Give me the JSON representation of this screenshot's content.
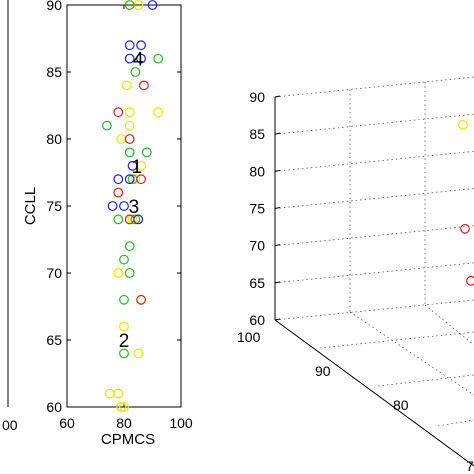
{
  "chart_data": [
    {
      "type": "axis-fragment",
      "x_tick_labels": [
        "00"
      ]
    },
    {
      "type": "scatter",
      "xlabel": "CPMCS",
      "ylabel": "CCLL",
      "xlim": [
        60,
        100
      ],
      "ylim": [
        60,
        90
      ],
      "x_ticks": [
        60,
        80,
        100
      ],
      "y_ticks": [
        60,
        65,
        70,
        75,
        80,
        85,
        90
      ],
      "grid": false,
      "annotations": [
        {
          "text": "4",
          "x": 85,
          "y": 86
        },
        {
          "text": "1",
          "x": 84.5,
          "y": 78
        },
        {
          "text": "3",
          "x": 83.5,
          "y": 75
        },
        {
          "text": "2",
          "x": 80,
          "y": 65
        }
      ],
      "series": [
        {
          "color": "#e6e600",
          "points": [
            [
              82,
              90
            ],
            [
              85,
              90
            ],
            [
              81,
              84
            ],
            [
              82,
              82
            ],
            [
              92,
              82
            ],
            [
              82,
              81
            ],
            [
              79,
              80
            ],
            [
              86,
              78
            ],
            [
              84,
              77
            ],
            [
              82,
              74
            ],
            [
              83,
              74
            ],
            [
              78,
              70
            ],
            [
              86,
              68
            ],
            [
              80,
              66
            ],
            [
              85,
              64
            ],
            [
              78,
              61
            ],
            [
              79,
              60
            ],
            [
              80,
              60
            ],
            [
              75,
              61
            ]
          ]
        },
        {
          "color": "#2ab52a",
          "points": [
            [
              82,
              90
            ],
            [
              92,
              86
            ],
            [
              84,
              85
            ],
            [
              74,
              81
            ],
            [
              82,
              79
            ],
            [
              88,
              79
            ],
            [
              83,
              77
            ],
            [
              78,
              74
            ],
            [
              84,
              74
            ],
            [
              82,
              72
            ],
            [
              80,
              71
            ],
            [
              82,
              70
            ],
            [
              80,
              68
            ],
            [
              80,
              64
            ]
          ]
        },
        {
          "color": "#1f1fcc",
          "points": [
            [
              90,
              90
            ],
            [
              82,
              87
            ],
            [
              86,
              87
            ],
            [
              82,
              86
            ],
            [
              86,
              86
            ],
            [
              83,
              78
            ],
            [
              78,
              77
            ],
            [
              82,
              77
            ],
            [
              76,
              75
            ],
            [
              80,
              75
            ],
            [
              85,
              74
            ]
          ]
        },
        {
          "color": "#d42020",
          "points": [
            [
              78,
              82
            ],
            [
              87,
              84
            ],
            [
              82,
              80
            ],
            [
              86,
              77
            ],
            [
              78,
              76
            ],
            [
              82,
              74
            ],
            [
              86,
              68
            ]
          ]
        }
      ]
    },
    {
      "type": "scatter3d",
      "z_ticks": [
        60,
        65,
        70,
        75,
        80,
        85,
        90
      ],
      "x_tick_labels": [
        "100",
        "90",
        "80",
        "7"
      ],
      "grid": true,
      "series": [
        {
          "color": "#e6e600",
          "points": [
            [
              0,
              0,
              86
            ]
          ]
        },
        {
          "color": "#d42020",
          "points": [
            [
              0,
              0,
              72
            ],
            [
              0,
              0,
              65
            ]
          ]
        }
      ]
    }
  ]
}
